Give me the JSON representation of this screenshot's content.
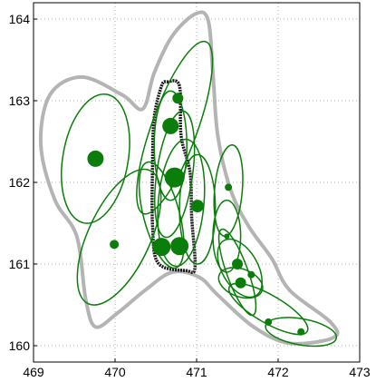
{
  "chart_data": {
    "type": "scatter",
    "xlim": [
      469,
      473
    ],
    "ylim": [
      159.8,
      164.2
    ],
    "xticks": [
      469,
      470,
      471,
      472,
      473
    ],
    "yticks": [
      160,
      161,
      162,
      163,
      164
    ],
    "grid": true,
    "color": "#0a7d0a",
    "x": [
      469.76,
      469.99,
      470.77,
      470.68,
      470.73,
      471.01,
      470.57,
      470.79,
      471.39,
      471.37,
      471.5,
      471.54,
      471.67,
      471.88,
      472.28
    ],
    "y": [
      162.29,
      161.24,
      163.03,
      162.69,
      162.06,
      161.71,
      161.21,
      161.22,
      161.94,
      161.34,
      161.0,
      160.77,
      160.87,
      160.29,
      160.17
    ],
    "sizes": [
      9,
      5,
      6,
      9,
      11,
      7,
      10,
      10,
      4,
      3,
      6,
      6,
      4,
      4,
      4
    ],
    "ellipses": [
      {
        "cx": 469.76,
        "cy": 162.29,
        "rx": 0.4,
        "ry": 0.8,
        "angle": 10
      },
      {
        "cx": 470.05,
        "cy": 161.33,
        "rx": 0.38,
        "ry": 0.9,
        "angle": 25
      },
      {
        "cx": 470.73,
        "cy": 162.67,
        "rx": 0.28,
        "ry": 1.12,
        "angle": 20
      },
      {
        "cx": 470.73,
        "cy": 162.1,
        "rx": 0.22,
        "ry": 0.78,
        "angle": 8
      },
      {
        "cx": 470.68,
        "cy": 162.45,
        "rx": 0.2,
        "ry": 0.67,
        "angle": 0
      },
      {
        "cx": 470.57,
        "cy": 161.6,
        "rx": 0.22,
        "ry": 0.67,
        "angle": -15
      },
      {
        "cx": 470.81,
        "cy": 161.75,
        "rx": 0.28,
        "ry": 0.78,
        "angle": 5
      },
      {
        "cx": 471.01,
        "cy": 161.67,
        "rx": 0.22,
        "ry": 0.67,
        "angle": 0
      },
      {
        "cx": 471.39,
        "cy": 161.9,
        "rx": 0.17,
        "ry": 0.56,
        "angle": 5
      },
      {
        "cx": 471.37,
        "cy": 161.34,
        "rx": 0.17,
        "ry": 0.44,
        "angle": 0
      },
      {
        "cx": 471.53,
        "cy": 160.95,
        "rx": 0.22,
        "ry": 0.39,
        "angle": -30
      },
      {
        "cx": 471.54,
        "cy": 160.77,
        "rx": 0.28,
        "ry": 0.17,
        "angle": 20
      },
      {
        "cx": 471.5,
        "cy": 160.9,
        "rx": 0.13,
        "ry": 0.56,
        "angle": -20
      },
      {
        "cx": 471.88,
        "cy": 160.45,
        "rx": 0.55,
        "ry": 0.17,
        "angle": 30
      },
      {
        "cx": 472.28,
        "cy": 160.17,
        "rx": 0.44,
        "ry": 0.16,
        "angle": 10
      }
    ],
    "contours": [
      {
        "color": "#b4b4b4",
        "x": [
          470.98,
          471.14,
          471.2,
          471.26,
          471.42,
          471.64,
          471.92,
          472.14,
          472.64,
          472.68,
          472.14,
          471.7,
          471.26,
          471.03,
          470.7,
          470.37,
          470.03,
          469.76,
          469.64,
          469.53,
          469.26,
          469.09,
          469.2,
          469.59,
          470.09,
          470.34,
          470.48,
          470.7
        ],
        "y": [
          164.06,
          163.99,
          163.34,
          162.57,
          161.9,
          161.46,
          161.07,
          160.68,
          160.29,
          160.1,
          160.03,
          160.23,
          160.62,
          160.84,
          160.9,
          160.68,
          160.4,
          160.23,
          160.57,
          161.34,
          161.79,
          162.46,
          163.07,
          163.29,
          163.07,
          162.9,
          163.34,
          163.79
        ]
      },
      {
        "color": "#1a1a1a",
        "x": [
          470.64,
          470.79,
          470.81,
          470.92,
          470.94,
          470.98,
          470.87,
          470.53,
          470.46,
          470.46,
          470.48,
          470.57
        ],
        "y": [
          163.23,
          163.18,
          162.57,
          162.12,
          161.57,
          160.96,
          160.92,
          161.01,
          161.46,
          162.23,
          162.79,
          163.18
        ]
      }
    ]
  }
}
